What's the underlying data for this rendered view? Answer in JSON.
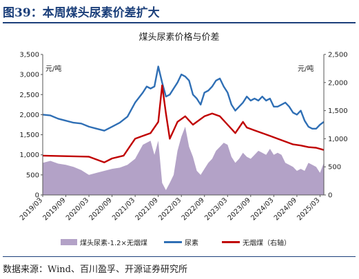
{
  "figure": {
    "title": "图39：本周煤头尿素价差扩大",
    "source": "数据来源：Wind、百川盈孚、开源证券研究所"
  },
  "chart_data": {
    "type": "line",
    "title": "煤头尿素价格与价差",
    "left_unit": "元/吨",
    "right_unit": "元/吨",
    "ylim_left": [
      0,
      3500
    ],
    "ylim_right": [
      0,
      2500
    ],
    "yticks_left": [
      "0",
      "500",
      "1,000",
      "1,500",
      "2,000",
      "2,500",
      "3,000",
      "3,500"
    ],
    "yticks_right": [
      "0",
      "500",
      "1,000",
      "1,500",
      "2,000",
      "2,500"
    ],
    "xticks": [
      "2019/03",
      "2019/09",
      "2020/03",
      "2020/09",
      "2021/03",
      "2021/09",
      "2022/03",
      "2022/09",
      "2023/03",
      "2023/09",
      "2024/03",
      "2024/09",
      "2025/03"
    ],
    "x_range": [
      "2019-03",
      "2025-04"
    ],
    "series": [
      {
        "name": "煤头尿素-1.2×无烟煤",
        "type": "area",
        "axis": "left",
        "color": "#b3a2c7",
        "x": [
          "2019-03",
          "2019-05",
          "2019-07",
          "2019-09",
          "2019-11",
          "2020-01",
          "2020-03",
          "2020-05",
          "2020-07",
          "2020-09",
          "2020-11",
          "2021-01",
          "2021-03",
          "2021-05",
          "2021-07",
          "2021-08",
          "2021-09",
          "2021-10",
          "2021-11",
          "2021-12",
          "2022-01",
          "2022-02",
          "2022-03",
          "2022-04",
          "2022-05",
          "2022-06",
          "2022-07",
          "2022-08",
          "2022-09",
          "2022-10",
          "2022-11",
          "2022-12",
          "2023-01",
          "2023-02",
          "2023-03",
          "2023-04",
          "2023-05",
          "2023-06",
          "2023-07",
          "2023-08",
          "2023-09",
          "2023-10",
          "2023-11",
          "2023-12",
          "2024-01",
          "2024-02",
          "2024-03",
          "2024-04",
          "2024-05",
          "2024-06",
          "2024-07",
          "2024-08",
          "2024-09",
          "2024-10",
          "2024-11",
          "2024-12",
          "2025-01",
          "2025-02",
          "2025-03",
          "2025-04"
        ],
        "values": [
          800,
          850,
          780,
          750,
          700,
          620,
          500,
          550,
          600,
          650,
          680,
          750,
          900,
          1250,
          1350,
          1000,
          1350,
          300,
          120,
          300,
          500,
          1100,
          1450,
          1700,
          1200,
          950,
          600,
          500,
          650,
          800,
          900,
          1100,
          1200,
          1300,
          1250,
          950,
          800,
          900,
          1050,
          950,
          900,
          1000,
          1100,
          1050,
          1000,
          1150,
          1000,
          1050,
          1000,
          800,
          750,
          700,
          600,
          650,
          600,
          800,
          750,
          700,
          550,
          800
        ]
      },
      {
        "name": "尿素",
        "type": "line",
        "axis": "left",
        "color": "#2f6fb5",
        "x": [
          "2019-03",
          "2019-05",
          "2019-07",
          "2019-09",
          "2019-11",
          "2020-01",
          "2020-03",
          "2020-05",
          "2020-07",
          "2020-09",
          "2020-11",
          "2021-01",
          "2021-03",
          "2021-05",
          "2021-06",
          "2021-07",
          "2021-08",
          "2021-09",
          "2021-10",
          "2021-11",
          "2021-12",
          "2022-01",
          "2022-02",
          "2022-03",
          "2022-04",
          "2022-05",
          "2022-06",
          "2022-07",
          "2022-08",
          "2022-09",
          "2022-10",
          "2022-11",
          "2022-12",
          "2023-01",
          "2023-02",
          "2023-03",
          "2023-04",
          "2023-05",
          "2023-06",
          "2023-07",
          "2023-08",
          "2023-09",
          "2023-10",
          "2023-11",
          "2023-12",
          "2024-01",
          "2024-02",
          "2024-03",
          "2024-04",
          "2024-05",
          "2024-06",
          "2024-07",
          "2024-08",
          "2024-09",
          "2024-10",
          "2024-11",
          "2024-12",
          "2025-01",
          "2025-02",
          "2025-03",
          "2025-04"
        ],
        "values": [
          2000,
          1980,
          1900,
          1850,
          1800,
          1780,
          1700,
          1650,
          1600,
          1700,
          1800,
          1950,
          2300,
          2550,
          2700,
          2650,
          2700,
          3200,
          2800,
          2450,
          2500,
          2650,
          2800,
          3000,
          2950,
          2850,
          2500,
          2400,
          2250,
          2550,
          2600,
          2700,
          2850,
          2900,
          2700,
          2550,
          2250,
          2100,
          2200,
          2300,
          2450,
          2350,
          2400,
          2350,
          2450,
          2350,
          2400,
          2200,
          2200,
          2250,
          2300,
          2200,
          2050,
          2000,
          2100,
          1850,
          1700,
          1650,
          1650,
          1750,
          1820
        ]
      },
      {
        "name": "无烟煤（右轴）",
        "type": "line",
        "axis": "right",
        "color": "#c00000",
        "x": [
          "2019-03",
          "2019-09",
          "2020-03",
          "2020-07",
          "2020-09",
          "2020-12",
          "2021-02",
          "2021-03",
          "2021-05",
          "2021-07",
          "2021-09",
          "2021-10",
          "2021-11",
          "2021-12",
          "2022-02",
          "2022-04",
          "2022-06",
          "2022-07",
          "2022-09",
          "2022-11",
          "2023-01",
          "2023-03",
          "2023-05",
          "2023-07",
          "2023-08",
          "2023-10",
          "2023-12",
          "2024-02",
          "2024-04",
          "2024-06",
          "2024-08",
          "2024-10",
          "2024-12",
          "2025-02",
          "2025-04"
        ],
        "values": [
          700,
          690,
          680,
          580,
          650,
          700,
          900,
          1000,
          1050,
          1100,
          1300,
          1950,
          1450,
          1000,
          1300,
          1400,
          1250,
          1300,
          1400,
          1450,
          1400,
          1250,
          1100,
          1300,
          1200,
          1150,
          1100,
          1050,
          1000,
          950,
          900,
          880,
          850,
          840,
          800
        ]
      }
    ]
  }
}
